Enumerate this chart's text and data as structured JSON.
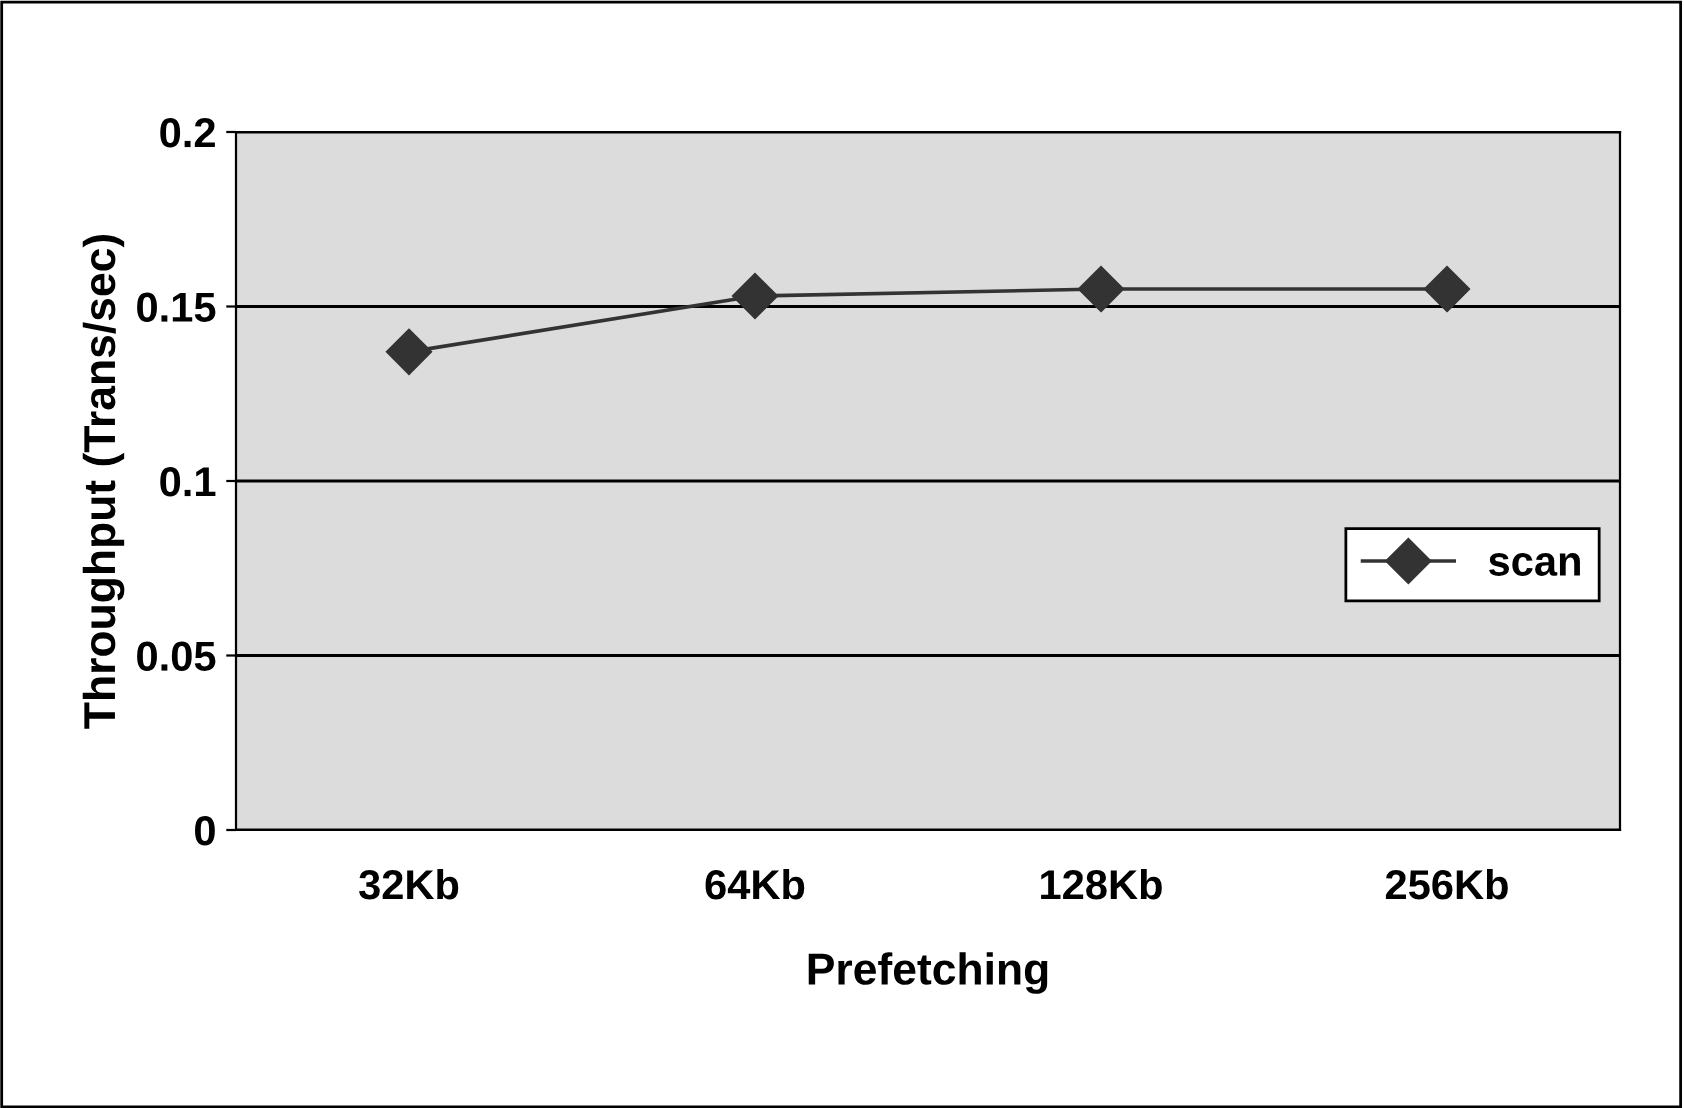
{
  "chart_data": {
    "type": "line",
    "xlabel": "Prefetching",
    "ylabel": "Throughput (Trans/sec)",
    "categories": [
      "32Kb",
      "64Kb",
      "128Kb",
      "256Kb"
    ],
    "series": [
      {
        "name": "scan",
        "color": "#333333",
        "values": [
          0.137,
          0.153,
          0.155,
          0.155
        ]
      }
    ],
    "ylim": [
      0,
      0.2
    ],
    "yticks": [
      0,
      0.05,
      0.1,
      0.15,
      0.2
    ],
    "grid": "y",
    "legend": "right",
    "marker": "diamond",
    "line_style": "solid"
  }
}
